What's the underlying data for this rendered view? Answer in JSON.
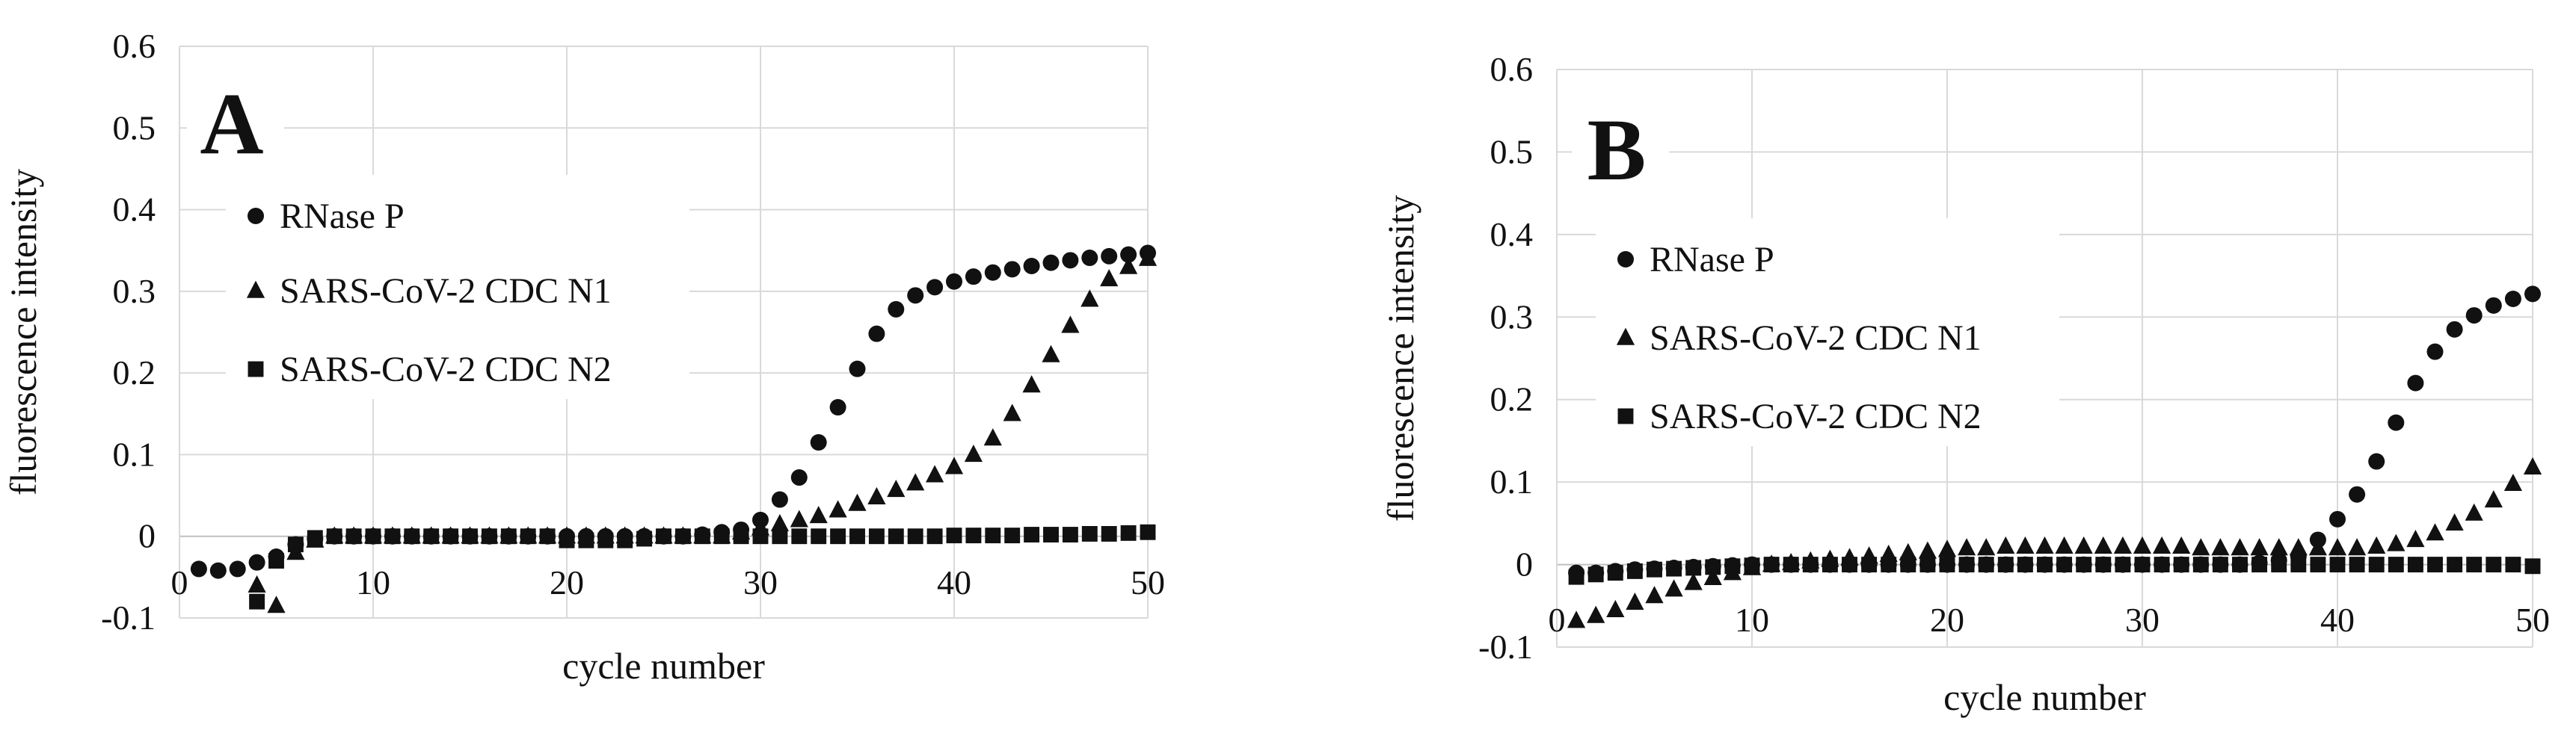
{
  "chart_data": [
    {
      "type": "scatter",
      "panel_label": "A",
      "xlabel": "cycle number",
      "ylabel": "fluorescence intensity",
      "xlim": [
        0,
        50
      ],
      "ylim": [
        -0.1,
        0.6
      ],
      "x_ticks": [
        0,
        10,
        20,
        30,
        40,
        50
      ],
      "y_ticks": [
        -0.1,
        0,
        0.1,
        0.2,
        0.3,
        0.4,
        0.5,
        0.6
      ],
      "y_tick_labels": [
        "-0.1",
        "0",
        "0.1",
        "0.2",
        "0.3",
        "0.4",
        "0.5",
        "0.6"
      ],
      "grid": true,
      "legend_position": "upper-left",
      "series": [
        {
          "name": "RNase P",
          "marker": "circle",
          "x": [
            1,
            2,
            3,
            4,
            5,
            6,
            7,
            8,
            9,
            10,
            11,
            12,
            13,
            14,
            15,
            16,
            17,
            18,
            19,
            20,
            21,
            22,
            23,
            24,
            25,
            26,
            27,
            28,
            29,
            30,
            31,
            32,
            33,
            34,
            35,
            36,
            37,
            38,
            39,
            40,
            41,
            42,
            43,
            44,
            45,
            46,
            47,
            48,
            49,
            50
          ],
          "y": [
            -0.04,
            -0.042,
            -0.04,
            -0.032,
            -0.025,
            -0.01,
            -0.003,
            0,
            0,
            0,
            0,
            0,
            0,
            0,
            0,
            0,
            0,
            0,
            0,
            0,
            0,
            0,
            0,
            0,
            0,
            0,
            0.002,
            0.005,
            0.008,
            0.02,
            0.045,
            0.072,
            0.115,
            0.158,
            0.205,
            0.248,
            0.278,
            0.295,
            0.305,
            0.312,
            0.318,
            0.323,
            0.327,
            0.331,
            0.335,
            0.338,
            0.341,
            0.343,
            0.345,
            0.347
          ]
        },
        {
          "name": "SARS-CoV-2 CDC N1",
          "marker": "triangle",
          "x": [
            4,
            5,
            6,
            7,
            8,
            9,
            10,
            11,
            12,
            13,
            14,
            15,
            16,
            17,
            18,
            19,
            20,
            21,
            22,
            23,
            24,
            25,
            26,
            27,
            28,
            29,
            30,
            31,
            32,
            33,
            34,
            35,
            36,
            37,
            38,
            39,
            40,
            41,
            42,
            43,
            44,
            45,
            46,
            47,
            48,
            49,
            50
          ],
          "y": [
            -0.06,
            -0.085,
            -0.02,
            -0.005,
            0,
            0,
            0,
            0,
            0,
            0,
            0,
            0,
            0,
            0,
            0,
            0,
            0,
            0,
            0,
            0,
            0,
            0,
            0,
            0,
            0,
            0.005,
            0.01,
            0.015,
            0.02,
            0.025,
            0.032,
            0.04,
            0.048,
            0.057,
            0.065,
            0.075,
            0.085,
            0.1,
            0.12,
            0.15,
            0.185,
            0.222,
            0.258,
            0.29,
            0.315,
            0.33,
            0.34
          ]
        },
        {
          "name": "SARS-CoV-2 CDC N2",
          "marker": "square",
          "x": [
            4,
            5,
            6,
            7,
            8,
            9,
            10,
            11,
            12,
            13,
            14,
            15,
            16,
            17,
            18,
            19,
            20,
            21,
            22,
            23,
            24,
            25,
            26,
            27,
            28,
            29,
            30,
            31,
            32,
            33,
            34,
            35,
            36,
            37,
            38,
            39,
            40,
            41,
            42,
            43,
            44,
            45,
            46,
            47,
            48,
            49,
            50
          ],
          "y": [
            -0.08,
            -0.03,
            -0.01,
            -0.002,
            0,
            0,
            0,
            0,
            0,
            0,
            0,
            0,
            0,
            0,
            0,
            0,
            -0.005,
            -0.005,
            -0.005,
            -0.005,
            -0.003,
            0,
            0,
            0,
            0,
            0,
            0,
            0,
            0,
            0,
            0,
            0,
            0,
            0,
            0,
            0,
            0.001,
            0.001,
            0.001,
            0.001,
            0.002,
            0.002,
            0.002,
            0.003,
            0.003,
            0.004,
            0.005
          ]
        }
      ]
    },
    {
      "type": "scatter",
      "panel_label": "B",
      "xlabel": "cycle number",
      "ylabel": "fluorescence intensity",
      "xlim": [
        0,
        50
      ],
      "ylim": [
        -0.1,
        0.6
      ],
      "x_ticks": [
        0,
        10,
        20,
        30,
        40,
        50
      ],
      "y_ticks": [
        -0.1,
        0,
        0.1,
        0.2,
        0.3,
        0.4,
        0.5,
        0.6
      ],
      "y_tick_labels": [
        "-0.1",
        "0",
        "0.1",
        "0.2",
        "0.3",
        "0.4",
        "0.5",
        "0.6"
      ],
      "grid": true,
      "legend_position": "upper-left",
      "series": [
        {
          "name": "RNase P",
          "marker": "circle",
          "x": [
            1,
            2,
            3,
            4,
            5,
            6,
            7,
            8,
            9,
            10,
            11,
            12,
            13,
            14,
            15,
            16,
            17,
            18,
            19,
            20,
            21,
            22,
            23,
            24,
            25,
            26,
            27,
            28,
            29,
            30,
            31,
            32,
            33,
            34,
            35,
            36,
            37,
            38,
            39,
            40,
            41,
            42,
            43,
            44,
            45,
            46,
            47,
            48,
            49,
            50
          ],
          "y": [
            -0.01,
            -0.01,
            -0.008,
            -0.006,
            -0.005,
            -0.004,
            -0.003,
            -0.002,
            -0.001,
            0,
            0,
            0,
            0,
            0,
            0,
            0,
            0,
            0,
            0,
            0,
            0,
            0,
            0,
            0,
            0,
            0,
            0,
            0,
            0,
            0,
            0,
            0,
            0,
            0,
            0,
            0.002,
            0.005,
            0.01,
            0.03,
            0.055,
            0.085,
            0.125,
            0.172,
            0.22,
            0.258,
            0.285,
            0.302,
            0.314,
            0.322,
            0.328
          ]
        },
        {
          "name": "SARS-CoV-2 CDC N1",
          "marker": "triangle",
          "x": [
            1,
            2,
            3,
            4,
            5,
            6,
            7,
            8,
            9,
            10,
            11,
            12,
            13,
            14,
            15,
            16,
            17,
            18,
            19,
            20,
            21,
            22,
            23,
            24,
            25,
            26,
            27,
            28,
            29,
            30,
            31,
            32,
            33,
            34,
            35,
            36,
            37,
            38,
            39,
            40,
            41,
            42,
            43,
            44,
            45,
            46,
            47,
            48,
            49,
            50
          ],
          "y": [
            -0.068,
            -0.062,
            -0.055,
            -0.046,
            -0.038,
            -0.03,
            -0.022,
            -0.016,
            -0.01,
            -0.004,
            0,
            0.002,
            0.004,
            0.006,
            0.008,
            0.01,
            0.012,
            0.014,
            0.016,
            0.018,
            0.02,
            0.02,
            0.022,
            0.022,
            0.022,
            0.022,
            0.022,
            0.022,
            0.022,
            0.022,
            0.022,
            0.022,
            0.02,
            0.02,
            0.02,
            0.02,
            0.02,
            0.02,
            0.02,
            0.02,
            0.02,
            0.022,
            0.025,
            0.03,
            0.038,
            0.05,
            0.062,
            0.078,
            0.098,
            0.118
          ]
        },
        {
          "name": "SARS-CoV-2 CDC N2",
          "marker": "square",
          "x": [
            1,
            2,
            3,
            4,
            5,
            6,
            7,
            8,
            9,
            10,
            11,
            12,
            13,
            14,
            15,
            16,
            17,
            18,
            19,
            20,
            21,
            22,
            23,
            24,
            25,
            26,
            27,
            28,
            29,
            30,
            31,
            32,
            33,
            34,
            35,
            36,
            37,
            38,
            39,
            40,
            41,
            42,
            43,
            44,
            45,
            46,
            47,
            48,
            49,
            50
          ],
          "y": [
            -0.015,
            -0.012,
            -0.01,
            -0.008,
            -0.006,
            -0.005,
            -0.004,
            -0.003,
            -0.002,
            -0.001,
            0,
            0,
            0,
            0,
            0,
            0,
            0,
            0,
            0,
            0,
            0,
            0,
            0,
            0,
            0,
            0,
            0,
            0,
            0,
            0,
            0,
            0,
            0,
            0,
            0,
            0,
            0,
            0,
            0,
            0,
            0,
            0,
            0,
            0,
            0,
            0,
            0,
            0,
            0,
            -0.002
          ]
        }
      ]
    }
  ]
}
